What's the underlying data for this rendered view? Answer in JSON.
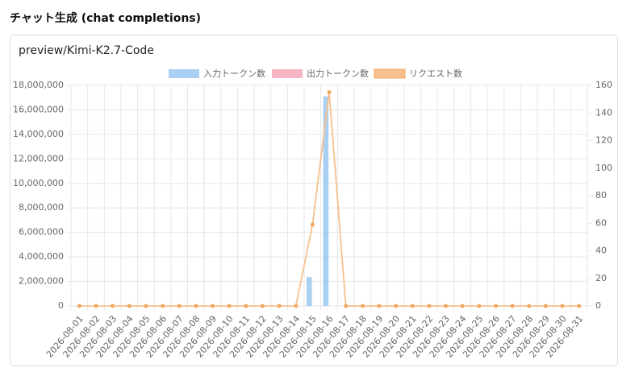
{
  "header": {
    "title": "チャット生成 (chat completions)"
  },
  "card": {
    "title": "preview/Kimi-K2.7-Code"
  },
  "chart_data": {
    "type": "bar",
    "categories": [
      "2026-08-01",
      "2026-08-02",
      "2026-08-03",
      "2026-08-04",
      "2026-08-05",
      "2026-08-06",
      "2026-08-07",
      "2026-08-08",
      "2026-08-09",
      "2026-08-10",
      "2026-08-11",
      "2026-08-12",
      "2026-08-13",
      "2026-08-14",
      "2026-08-15",
      "2026-08-16",
      "2026-08-17",
      "2026-08-18",
      "2026-08-19",
      "2026-08-20",
      "2026-08-21",
      "2026-08-22",
      "2026-08-23",
      "2026-08-24",
      "2026-08-25",
      "2026-08-26",
      "2026-08-27",
      "2026-08-28",
      "2026-08-29",
      "2026-08-30",
      "2026-08-31"
    ],
    "series": [
      {
        "name": "入力トークン数",
        "type": "bar",
        "color": "#a9d0f2",
        "values": [
          0,
          0,
          0,
          0,
          0,
          0,
          0,
          0,
          0,
          0,
          0,
          0,
          0,
          0,
          2350000,
          17100000,
          0,
          0,
          0,
          0,
          0,
          0,
          0,
          0,
          0,
          0,
          0,
          0,
          0,
          0,
          0
        ]
      },
      {
        "name": "出力トークン数",
        "type": "bar",
        "color": "#f8b6c5",
        "values": [
          0,
          0,
          0,
          0,
          0,
          0,
          0,
          0,
          0,
          0,
          0,
          0,
          0,
          0,
          0,
          0,
          0,
          0,
          0,
          0,
          0,
          0,
          0,
          0,
          0,
          0,
          0,
          0,
          0,
          0,
          0
        ]
      },
      {
        "name": "リクエスト数",
        "type": "line",
        "axis": "y2",
        "color": "#f6c08f",
        "values": [
          0,
          0,
          0,
          0,
          0,
          0,
          0,
          0,
          0,
          0,
          0,
          0,
          0,
          0,
          59,
          155,
          0,
          0,
          0,
          0,
          0,
          0,
          0,
          0,
          0,
          0,
          0,
          0,
          0,
          0,
          0
        ]
      }
    ],
    "ylim": [
      0,
      18000000
    ],
    "yticks": [
      0,
      {
        "value": 2000000,
        "label": "2,000,000"
      },
      {
        "value": 4000000,
        "label": "4,000,000"
      },
      {
        "value": 6000000,
        "label": "6,000,000"
      },
      {
        "value": 8000000,
        "label": "8,000,000"
      },
      {
        "value": 10000000,
        "label": "10,000,000"
      },
      {
        "value": 12000000,
        "label": "12,000,000"
      },
      {
        "value": 14000000,
        "label": "14,000,000"
      },
      {
        "value": 16000000,
        "label": "16,000,000"
      },
      {
        "value": 18000000,
        "label": "18,000,000"
      }
    ],
    "y2lim": [
      0,
      160
    ],
    "y2ticks": [
      0,
      20,
      40,
      60,
      80,
      100,
      120,
      140,
      160
    ],
    "grid": true,
    "legend": "top"
  }
}
